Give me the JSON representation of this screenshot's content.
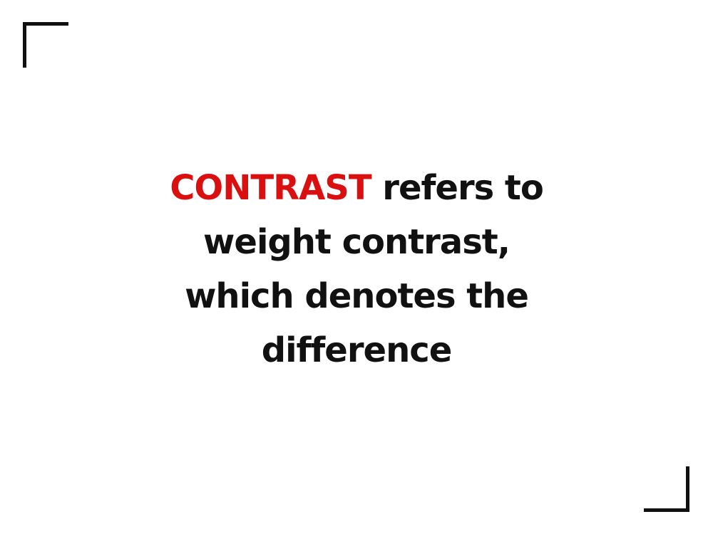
{
  "headline": {
    "accent_word": "CONTRAST",
    "line1_rest": " refers to",
    "line2": "weight contrast,",
    "line3": "which denotes the",
    "line4": "difference"
  },
  "colors": {
    "accent": "#d90f10",
    "text": "#111111",
    "background": "#ffffff",
    "frame": "#111111"
  }
}
